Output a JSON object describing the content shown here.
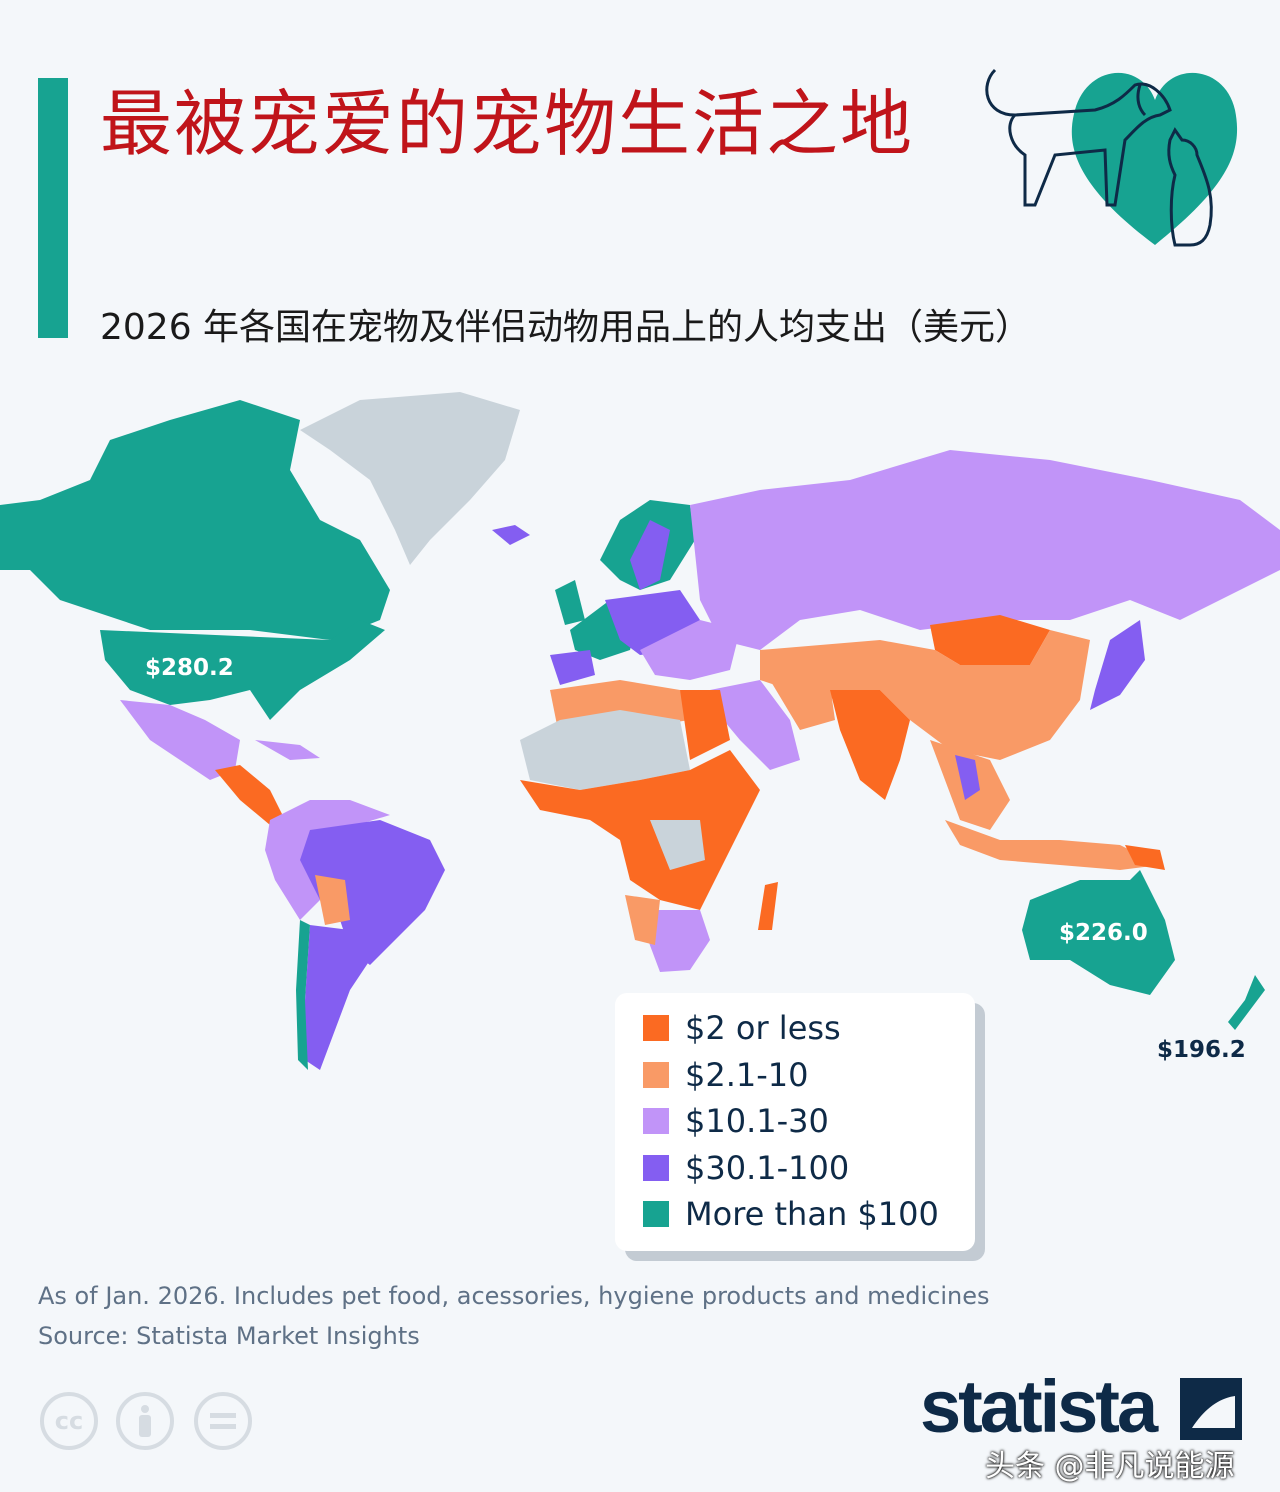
{
  "title": "最被宠爱的宠物生活之地",
  "subtitle": "2026 年各国在宠物及伴侣动物用品上的人均支出（美元）",
  "colors": {
    "accent": "#17a391",
    "title": "#c0141a",
    "no_data": "#c9d3da"
  },
  "icons": [
    "dog-icon",
    "cat-icon",
    "heart-icon"
  ],
  "labels": {
    "usa": "$280.2",
    "australia": "$226.0",
    "new_zealand": "$196.2"
  },
  "legend": [
    {
      "label": "$2 or less",
      "color": "#fb6a22"
    },
    {
      "label": "$2.1-10",
      "color": "#f99a66"
    },
    {
      "label": "$10.1-30",
      "color": "#c194f8"
    },
    {
      "label": "$30.1-100",
      "color": "#845ef1"
    },
    {
      "label": "More than $100",
      "color": "#17a391"
    }
  ],
  "footer": {
    "note": "As of Jan. 2026. Includes pet food, acessories, hygiene products and medicines",
    "source": "Source: Statista Market Insights",
    "license_icons": [
      "cc-icon",
      "attribution-icon",
      "no-derivatives-icon"
    ],
    "cc_text": "cc",
    "brand": "statista",
    "watermark": "头条 @非凡说能源"
  }
}
